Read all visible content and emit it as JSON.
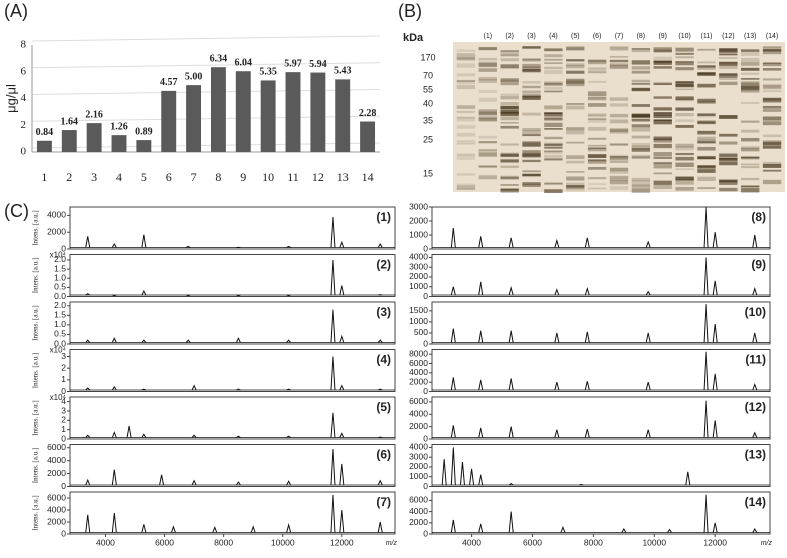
{
  "panel_labels": [
    "(A)",
    "(B)",
    "(C)"
  ],
  "gel": {
    "unit_label": "kDa",
    "markers": [
      170,
      70,
      55,
      40,
      35,
      25,
      15
    ],
    "lanes": [
      "(1)",
      "(2)",
      "(3)",
      "(4)",
      "(5)",
      "(6)",
      "(7)",
      "(8)",
      "(9)",
      "(10)",
      "(11)",
      "(12)",
      "(13)",
      "(14)"
    ]
  },
  "chart_data": [
    {
      "type": "bar",
      "ylabel": "μg/μl",
      "categories": [
        "1",
        "2",
        "3",
        "4",
        "5",
        "6",
        "7",
        "8",
        "9",
        "10",
        "11",
        "12",
        "13",
        "14"
      ],
      "values": [
        0.84,
        1.64,
        2.16,
        1.26,
        0.89,
        4.57,
        5.0,
        6.34,
        6.04,
        5.35,
        5.97,
        5.94,
        5.43,
        2.28
      ],
      "value_labels": [
        "0.84",
        "1.64",
        "2.16",
        "1.26",
        "0.89",
        "4.57",
        "5.00",
        "6.34",
        "6.04",
        "5.35",
        "5.97",
        "5.94",
        "5.43",
        "2.28"
      ],
      "color": "#5a5a5a",
      "ylim": [
        0,
        8
      ],
      "yticks": [
        0,
        2,
        4,
        6,
        8
      ],
      "grid": true
    },
    {
      "type": "spectrum",
      "label": "(1)",
      "ylabel": "Intens. [a.u.]",
      "color": "#111",
      "xlim": [
        2800,
        13800
      ],
      "ylim": [
        0,
        5000
      ],
      "yticks": [
        0,
        2000,
        4000
      ],
      "x": [
        3400,
        4300,
        5300,
        6800,
        8500,
        10200,
        11700,
        12000,
        13300
      ],
      "values": [
        1500,
        600,
        1700,
        300,
        200,
        300,
        3800,
        800,
        600
      ]
    },
    {
      "type": "spectrum",
      "label": "(2)",
      "ylabel": "Intens. [a.u.]",
      "multiplier": "x10⁴",
      "color": "#111",
      "xlim": [
        2800,
        13800
      ],
      "ylim": [
        0,
        2.3
      ],
      "yticks": [
        {
          "value": 0,
          "label": "0.0"
        },
        0.5,
        {
          "value": 1,
          "label": "1.0"
        },
        1.5,
        {
          "value": 2,
          "label": "2.0"
        }
      ],
      "x": [
        3400,
        4300,
        5300,
        6800,
        8500,
        10200,
        11700,
        12000,
        13300
      ],
      "values": [
        0.15,
        0.05,
        0.3,
        0.05,
        0.05,
        0.05,
        2.0,
        0.6,
        0.1
      ]
    },
    {
      "type": "spectrum",
      "label": "(3)",
      "ylabel": "Intens. [a.u.]",
      "color": "#111",
      "xlim": [
        2800,
        13800
      ],
      "ylim": [
        0,
        2.2
      ],
      "yticks": [
        {
          "value": 0,
          "label": "0.0"
        },
        0.5,
        {
          "value": 1,
          "label": "1.0"
        },
        1.5,
        {
          "value": 2,
          "label": "2.0"
        }
      ],
      "x": [
        3400,
        4300,
        5300,
        6800,
        8500,
        10200,
        11700,
        12000,
        13300
      ],
      "values": [
        0.2,
        0.3,
        0.2,
        0.2,
        0.3,
        0.2,
        1.8,
        0.4,
        0.2
      ]
    },
    {
      "type": "spectrum",
      "label": "(4)",
      "ylabel": "Intens. [a.u.]",
      "multiplier": "x10⁴",
      "color": "#111",
      "xlim": [
        2800,
        13800
      ],
      "ylim": [
        0,
        3.6
      ],
      "yticks": [
        0,
        1,
        2,
        3
      ],
      "x": [
        3400,
        4300,
        5300,
        7000,
        8500,
        10200,
        11700,
        12000,
        13300
      ],
      "values": [
        0.3,
        0.4,
        0.2,
        0.5,
        0.2,
        0.2,
        3.0,
        0.5,
        0.2
      ]
    },
    {
      "type": "spectrum",
      "label": "(5)",
      "ylabel": "Intens. [a.u.]",
      "multiplier": "x10⁴",
      "color": "#111",
      "xlim": [
        2800,
        13800
      ],
      "ylim": [
        0,
        4.5
      ],
      "yticks": [
        0,
        1,
        2,
        3,
        4
      ],
      "x": [
        3400,
        4300,
        4800,
        5300,
        7000,
        8500,
        10200,
        11700,
        12000,
        13300
      ],
      "values": [
        0.4,
        0.7,
        1.4,
        0.5,
        0.4,
        0.3,
        0.3,
        2.8,
        0.6,
        0.2
      ]
    },
    {
      "type": "spectrum",
      "label": "(6)",
      "ylabel": "Intens. [a.u.]",
      "color": "#111",
      "xlim": [
        2800,
        13800
      ],
      "ylim": [
        0,
        6500
      ],
      "yticks": [
        0,
        2000,
        4000,
        6000
      ],
      "x": [
        3400,
        4300,
        5900,
        7000,
        8500,
        10200,
        11700,
        12000,
        13300
      ],
      "values": [
        1000,
        2600,
        1800,
        900,
        700,
        800,
        5800,
        3500,
        900
      ]
    },
    {
      "type": "spectrum",
      "label": "(7)",
      "ylabel": "Intens. [a.u.]",
      "color": "#111",
      "xlim": [
        2800,
        13800
      ],
      "ylim": [
        0,
        7000
      ],
      "yticks": [
        0,
        2000,
        4000,
        6000
      ],
      "xticks": [
        4000,
        6000,
        8000,
        10000,
        12000
      ],
      "xlabel": "m/z",
      "x": [
        3400,
        4300,
        5300,
        6300,
        7700,
        9000,
        10200,
        11700,
        12000,
        13300
      ],
      "values": [
        3200,
        3500,
        1600,
        1200,
        1100,
        1200,
        1500,
        6500,
        4000,
        2000
      ]
    },
    {
      "type": "spectrum",
      "label": "(8)",
      "color": "#111",
      "xlim": [
        2700,
        13800
      ],
      "ylim": [
        0,
        3000
      ],
      "yticks": [
        0,
        1000,
        2000,
        3000
      ],
      "x": [
        3400,
        4300,
        5300,
        6800,
        7800,
        9800,
        11700,
        12000,
        13300
      ],
      "values": [
        1500,
        900,
        800,
        600,
        800,
        500,
        3000,
        1200,
        1000
      ]
    },
    {
      "type": "spectrum",
      "label": "(9)",
      "color": "#111",
      "xlim": [
        2700,
        13800
      ],
      "ylim": [
        0,
        4300
      ],
      "yticks": [
        0,
        1000,
        2000,
        3000,
        4000
      ],
      "x": [
        3400,
        4300,
        5300,
        6800,
        7800,
        9800,
        11700,
        12000,
        13300
      ],
      "values": [
        1000,
        1500,
        900,
        700,
        800,
        500,
        4000,
        1600,
        800
      ]
    },
    {
      "type": "spectrum",
      "label": "(10)",
      "color": "#111",
      "xlim": [
        2700,
        13800
      ],
      "ylim": [
        0,
        1900
      ],
      "yticks": [
        0,
        500,
        1000,
        1500
      ],
      "x": [
        3400,
        4300,
        5300,
        6800,
        7800,
        9800,
        11700,
        12000,
        13300
      ],
      "values": [
        700,
        600,
        600,
        500,
        550,
        500,
        1800,
        900,
        500
      ]
    },
    {
      "type": "spectrum",
      "label": "(11)",
      "color": "#111",
      "xlim": [
        2700,
        13800
      ],
      "ylim": [
        0,
        9000
      ],
      "yticks": [
        0,
        2000,
        4000,
        6000,
        8000
      ],
      "x": [
        3400,
        4300,
        5300,
        6800,
        7800,
        9800,
        11700,
        12000,
        13300
      ],
      "values": [
        3000,
        2500,
        2800,
        2000,
        2200,
        2000,
        8500,
        3800,
        1500
      ]
    },
    {
      "type": "spectrum",
      "label": "(12)",
      "color": "#111",
      "xlim": [
        2700,
        13800
      ],
      "ylim": [
        0,
        6800
      ],
      "yticks": [
        0,
        2000,
        4000,
        6000
      ],
      "x": [
        3400,
        4300,
        5300,
        6800,
        7800,
        9800,
        11700,
        12000,
        13300
      ],
      "values": [
        2200,
        1800,
        2000,
        1500,
        1600,
        1500,
        6200,
        3000,
        1000
      ]
    },
    {
      "type": "spectrum",
      "label": "(13)",
      "color": "#111",
      "xlim": [
        2700,
        13800
      ],
      "ylim": [
        0,
        4300
      ],
      "yticks": [
        0,
        1000,
        2000,
        3000,
        4000
      ],
      "x": [
        3100,
        3400,
        3700,
        4000,
        4300,
        5300,
        7600,
        11100
      ],
      "values": [
        2800,
        4000,
        2500,
        1800,
        1200,
        300,
        200,
        1500
      ]
    },
    {
      "type": "spectrum",
      "label": "(14)",
      "color": "#111",
      "xlim": [
        2700,
        13800
      ],
      "ylim": [
        0,
        7500
      ],
      "yticks": [
        0,
        2000,
        4000,
        6000
      ],
      "xticks": [
        4000,
        6000,
        8000,
        10000,
        12000
      ],
      "xlabel": "m/z",
      "x": [
        3400,
        4300,
        5300,
        7000,
        9000,
        10500,
        11700,
        12000,
        13300
      ],
      "values": [
        2500,
        1800,
        4000,
        1200,
        900,
        800,
        7000,
        2000,
        900
      ]
    }
  ]
}
